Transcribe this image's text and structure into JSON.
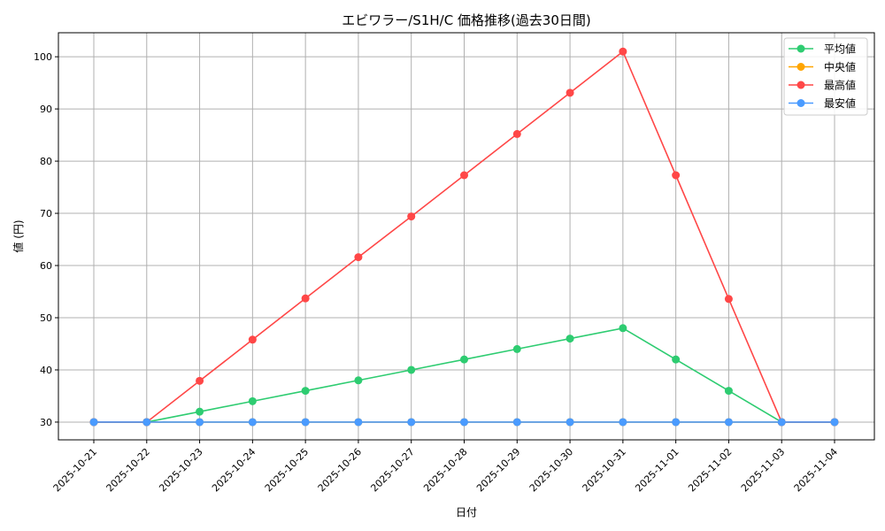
{
  "chart_data": {
    "type": "line",
    "title": "エビワラー/S1H/C 価格推移(過去30日間)",
    "xlabel": "日付",
    "ylabel": "値 (円)",
    "categories": [
      "2025-10-21",
      "2025-10-22",
      "2025-10-23",
      "2025-10-24",
      "2025-10-25",
      "2025-10-26",
      "2025-10-27",
      "2025-10-28",
      "2025-10-29",
      "2025-10-30",
      "2025-10-31",
      "2025-11-01",
      "2025-11-02",
      "2025-11-03",
      "2025-11-04"
    ],
    "yticks": [
      30,
      40,
      50,
      60,
      70,
      80,
      90,
      100
    ],
    "ylim": [
      26.6,
      104.6
    ],
    "grid": true,
    "legend_position": "top-right",
    "series": [
      {
        "name": "平均値",
        "color": "#2ecc71",
        "values": [
          30,
          30,
          32,
          34,
          36,
          38,
          40,
          42,
          44,
          46,
          48,
          42,
          36,
          30,
          30
        ]
      },
      {
        "name": "中央値",
        "color": "#ffa500",
        "values": [
          30,
          30,
          30,
          30,
          30,
          30,
          30,
          30,
          30,
          30,
          30,
          30,
          30,
          30,
          30
        ]
      },
      {
        "name": "最高値",
        "color": "#ff4747",
        "values": [
          30,
          30,
          37.9,
          45.8,
          53.7,
          61.6,
          69.4,
          77.3,
          85.2,
          93.1,
          101,
          77.3,
          53.6,
          30,
          30
        ]
      },
      {
        "name": "最安値",
        "color": "#4a9bff",
        "values": [
          30,
          30,
          30,
          30,
          30,
          30,
          30,
          30,
          30,
          30,
          30,
          30,
          30,
          30,
          30
        ]
      }
    ]
  }
}
